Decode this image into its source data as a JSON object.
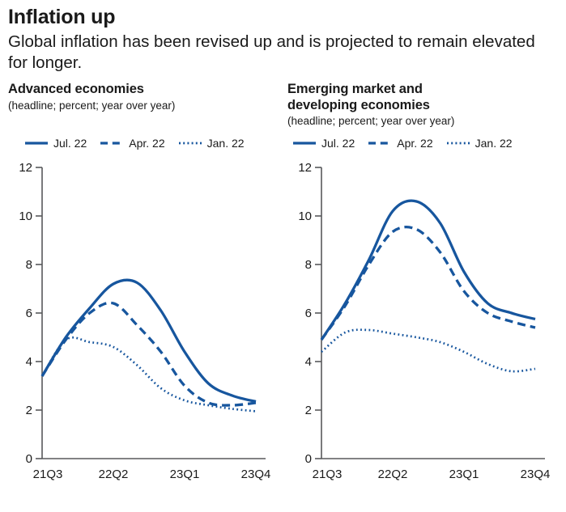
{
  "header": {
    "title": "Inflation up",
    "subtitle": "Global inflation has been revised up and is projected to remain elevated for longer."
  },
  "colors": {
    "line_blue": "#17569E",
    "text": "#1A1A1A",
    "axis": "#58595B"
  },
  "legend": {
    "items": [
      {
        "label": "Jul. 22",
        "style": "solid"
      },
      {
        "label": "Apr. 22",
        "style": "dashed"
      },
      {
        "label": "Jan. 22",
        "style": "dotted"
      }
    ]
  },
  "chart_data": [
    {
      "type": "line",
      "title": "Advanced economies",
      "subtitle": "(headline; percent; year over year)",
      "x": [
        "21Q3",
        "21Q4",
        "22Q1",
        "22Q2",
        "22Q3",
        "22Q4",
        "23Q1",
        "23Q2",
        "23Q3",
        "23Q4"
      ],
      "x_tick_labels": [
        "21Q3",
        "22Q2",
        "23Q1",
        "23Q4"
      ],
      "ylim": [
        0,
        12
      ],
      "y_ticks": [
        0,
        2,
        4,
        6,
        8,
        10,
        12
      ],
      "grid": false,
      "legend_position": "top",
      "series": [
        {
          "name": "Jul. 22",
          "style": "solid",
          "values": [
            3.4,
            5.0,
            6.2,
            7.2,
            7.25,
            6.1,
            4.4,
            3.1,
            2.6,
            2.35
          ]
        },
        {
          "name": "Apr. 22",
          "style": "dashed",
          "values": [
            3.4,
            4.9,
            6.0,
            6.4,
            5.5,
            4.4,
            3.0,
            2.3,
            2.2,
            2.3
          ]
        },
        {
          "name": "Jan. 22",
          "style": "dotted",
          "values": [
            3.4,
            4.9,
            4.8,
            4.6,
            3.85,
            2.9,
            2.4,
            2.2,
            2.05,
            1.95
          ]
        }
      ]
    },
    {
      "type": "line",
      "title": "Emerging market and developing economies",
      "subtitle": "(headline; percent; year over year)",
      "x": [
        "21Q3",
        "21Q4",
        "22Q1",
        "22Q2",
        "22Q3",
        "22Q4",
        "23Q1",
        "23Q2",
        "23Q3",
        "23Q4"
      ],
      "x_tick_labels": [
        "21Q3",
        "22Q2",
        "23Q1",
        "23Q4"
      ],
      "ylim": [
        0,
        12
      ],
      "y_ticks": [
        0,
        2,
        4,
        6,
        8,
        10,
        12
      ],
      "grid": false,
      "legend_position": "top",
      "series": [
        {
          "name": "Jul. 22",
          "style": "solid",
          "values": [
            4.9,
            6.4,
            8.2,
            10.2,
            10.6,
            9.7,
            7.7,
            6.4,
            6.0,
            5.75
          ]
        },
        {
          "name": "Apr. 22",
          "style": "dashed",
          "values": [
            4.9,
            6.3,
            8.0,
            9.35,
            9.45,
            8.5,
            6.9,
            6.0,
            5.65,
            5.4
          ]
        },
        {
          "name": "Jan. 22",
          "style": "dotted",
          "values": [
            4.4,
            5.2,
            5.3,
            5.15,
            5.0,
            4.8,
            4.4,
            3.9,
            3.6,
            3.7
          ]
        }
      ]
    }
  ]
}
